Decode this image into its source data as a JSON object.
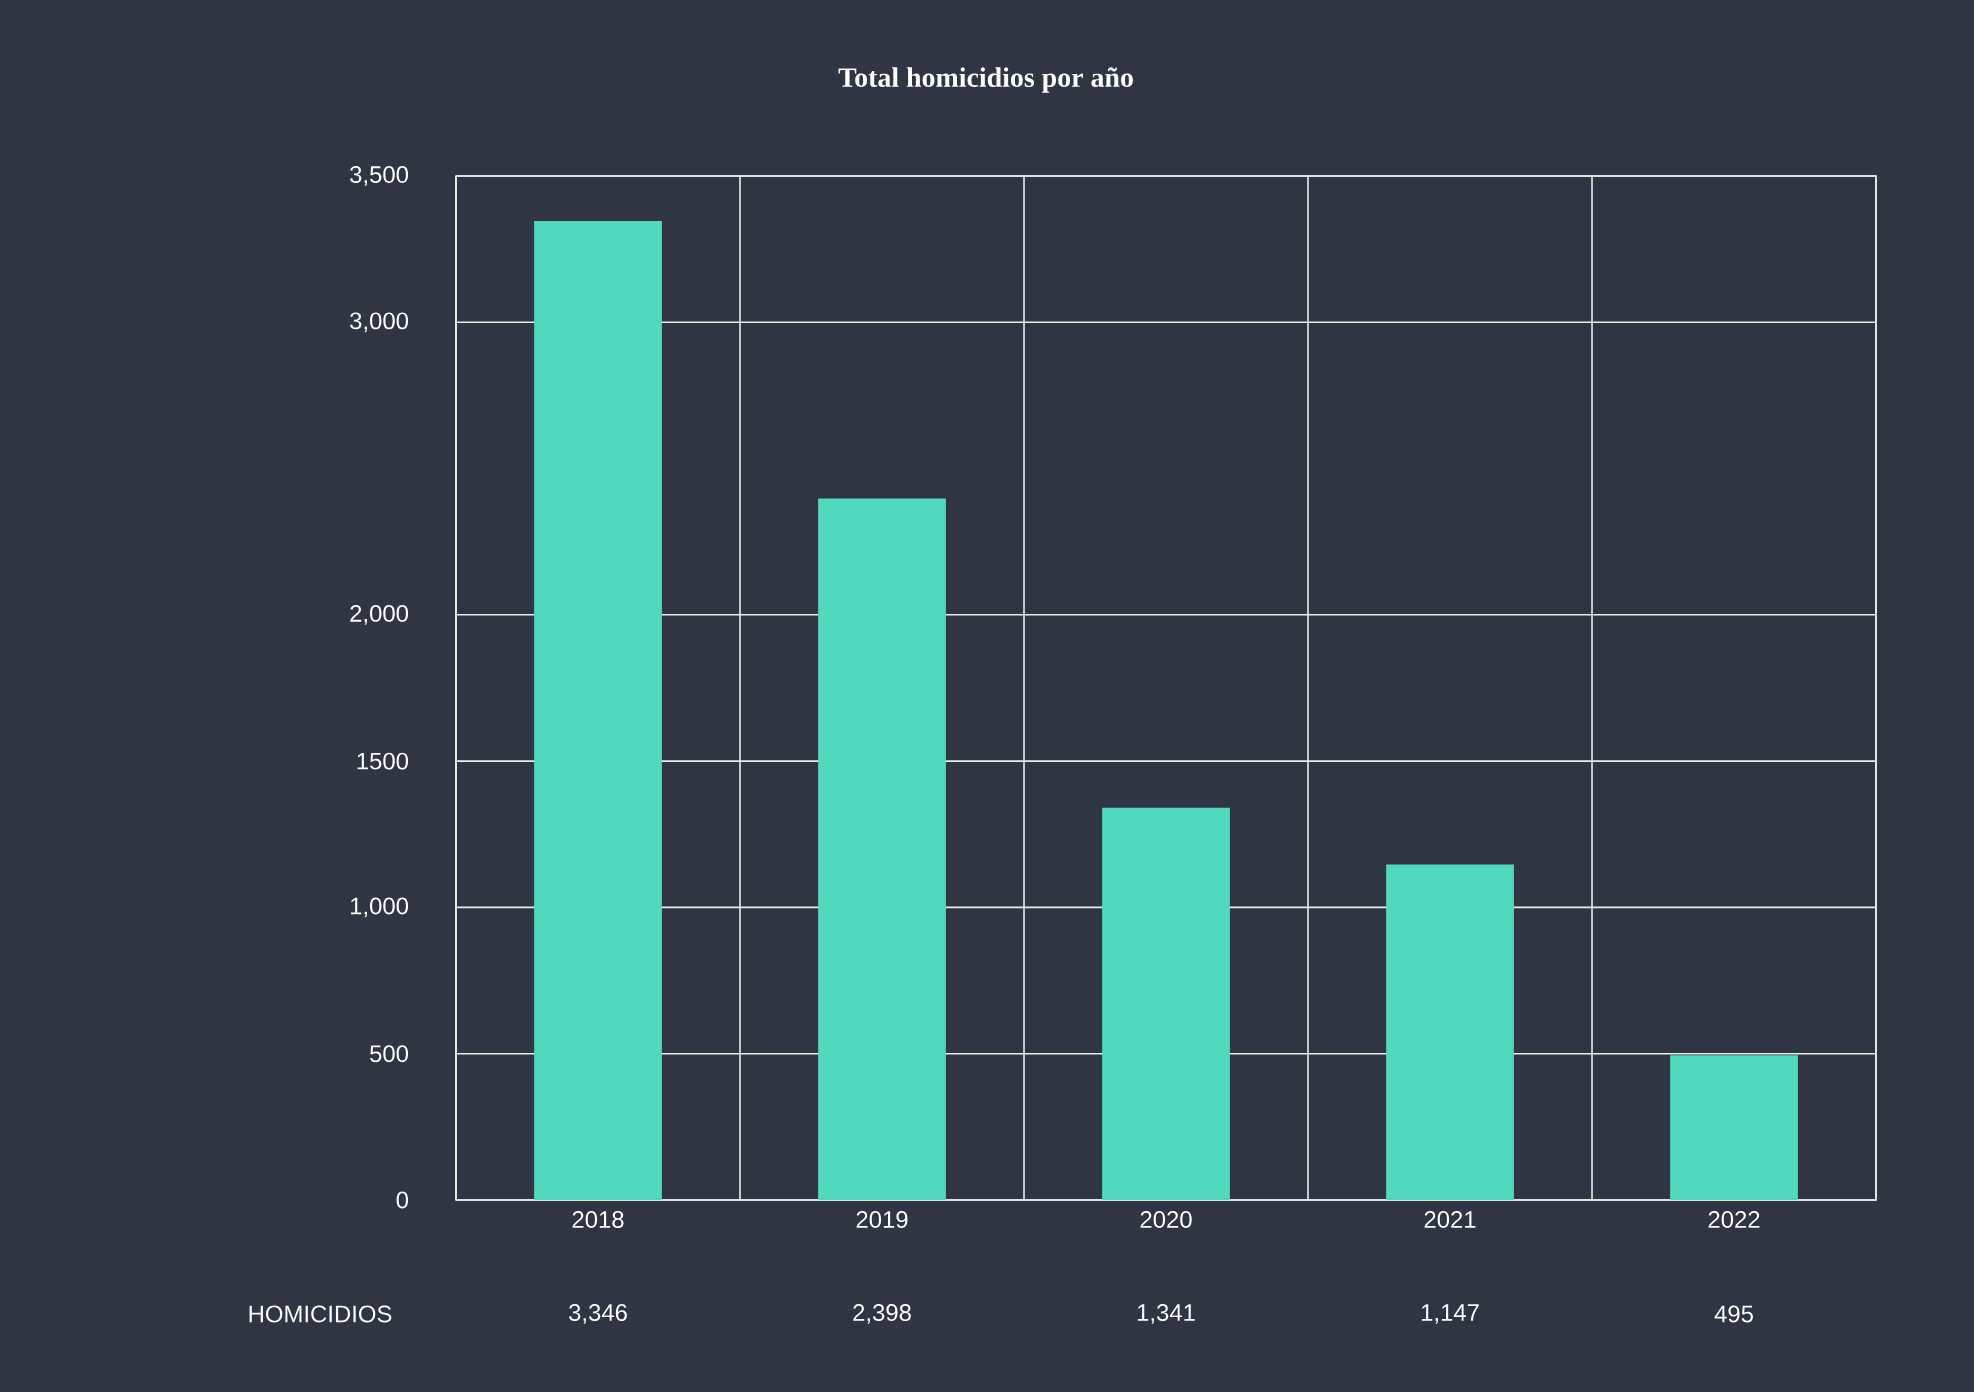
{
  "chart_data": {
    "type": "bar",
    "title": "Total homicidios por año",
    "categories": [
      "2018",
      "2019",
      "2020",
      "2021",
      "2022"
    ],
    "values": [
      3346,
      2398,
      1341,
      1147,
      495
    ],
    "value_labels": [
      "3,346",
      "2,398",
      "1,341",
      "1,147",
      "495"
    ],
    "color": "#52d9bd",
    "ylim": [
      0,
      3500
    ],
    "yticks": [
      0,
      500,
      {
        "value": 1000,
        "label": "1,000"
      },
      1500,
      {
        "value": 2000,
        "label": "2,000"
      },
      {
        "value": 3000,
        "label": "3,000"
      },
      {
        "value": 3500,
        "label": "3,500"
      }
    ],
    "grid": true,
    "annotations": [
      "HOMICIDIOS"
    ]
  }
}
